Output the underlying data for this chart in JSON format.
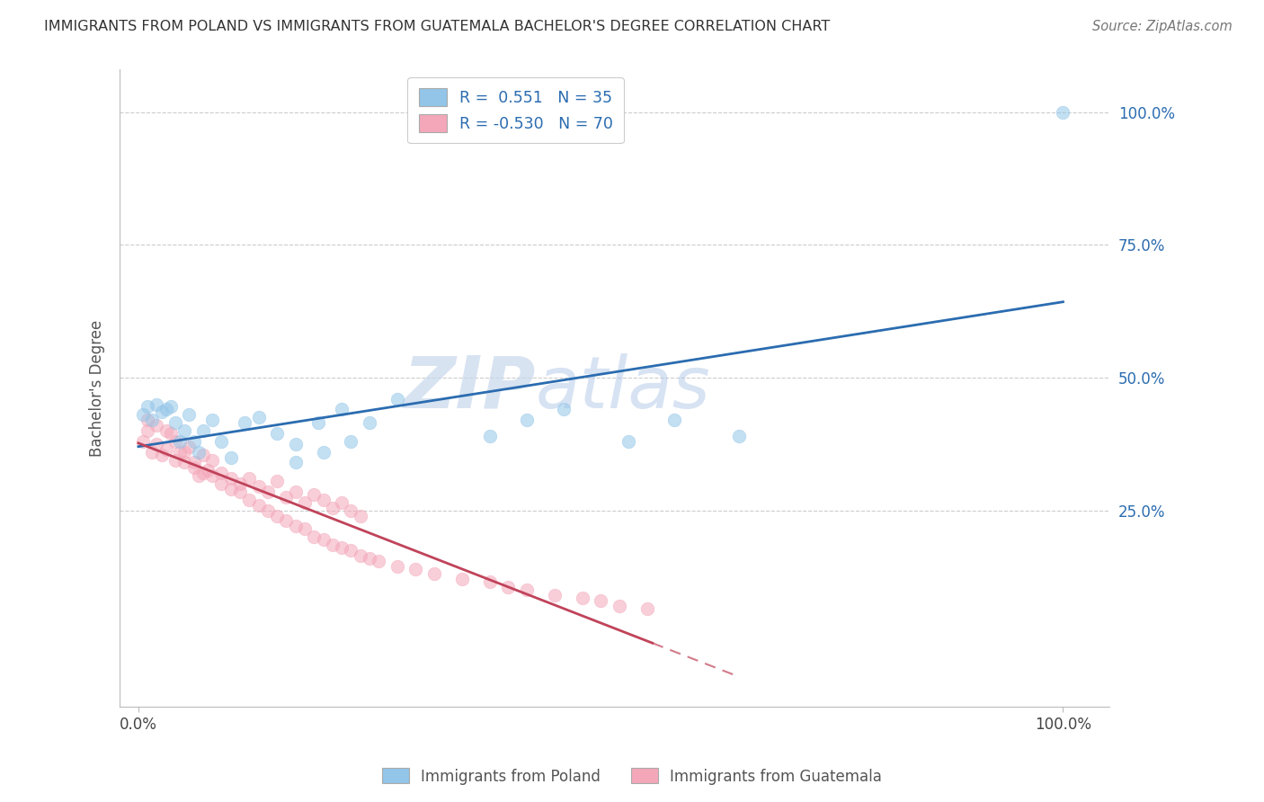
{
  "title": "IMMIGRANTS FROM POLAND VS IMMIGRANTS FROM GUATEMALA BACHELOR'S DEGREE CORRELATION CHART",
  "source": "Source: ZipAtlas.com",
  "ylabel": "Bachelor's Degree",
  "legend_labels": [
    "Immigrants from Poland",
    "Immigrants from Guatemala"
  ],
  "r_poland": 0.551,
  "n_poland": 35,
  "r_guatemala": -0.53,
  "n_guatemala": 70,
  "blue_color": "#92c5e8",
  "pink_color": "#f4a7b9",
  "blue_line_color": "#2b6cb0",
  "pink_line_color": "#c0435a",
  "legend_text_color": "#2b6cb0",
  "right_axis_color": "#2b6cb0",
  "watermark_color": "#d0dff0",
  "background_color": "#ffffff",
  "xlim": [
    -0.02,
    1.05
  ],
  "ylim": [
    -0.12,
    1.08
  ],
  "poland_x": [
    0.005,
    0.01,
    0.015,
    0.02,
    0.025,
    0.03,
    0.035,
    0.04,
    0.045,
    0.05,
    0.055,
    0.06,
    0.065,
    0.07,
    0.08,
    0.09,
    0.1,
    0.115,
    0.13,
    0.15,
    0.17,
    0.195,
    0.22,
    0.25,
    0.28,
    0.17,
    0.2,
    0.23,
    0.38,
    0.42,
    0.46,
    0.53,
    0.58,
    0.65,
    1.0
  ],
  "poland_y": [
    0.43,
    0.445,
    0.42,
    0.45,
    0.435,
    0.44,
    0.445,
    0.415,
    0.38,
    0.4,
    0.43,
    0.38,
    0.36,
    0.4,
    0.42,
    0.38,
    0.35,
    0.415,
    0.425,
    0.395,
    0.375,
    0.415,
    0.44,
    0.415,
    0.46,
    0.34,
    0.36,
    0.38,
    0.39,
    0.42,
    0.44,
    0.38,
    0.42,
    0.39,
    1.0
  ],
  "guatemala_x": [
    0.005,
    0.01,
    0.015,
    0.02,
    0.025,
    0.03,
    0.035,
    0.04,
    0.045,
    0.05,
    0.055,
    0.06,
    0.065,
    0.07,
    0.075,
    0.08,
    0.09,
    0.1,
    0.11,
    0.12,
    0.13,
    0.14,
    0.15,
    0.16,
    0.17,
    0.18,
    0.19,
    0.2,
    0.21,
    0.22,
    0.23,
    0.24,
    0.01,
    0.02,
    0.03,
    0.04,
    0.05,
    0.06,
    0.07,
    0.08,
    0.09,
    0.1,
    0.11,
    0.12,
    0.13,
    0.14,
    0.15,
    0.16,
    0.17,
    0.18,
    0.19,
    0.2,
    0.21,
    0.22,
    0.23,
    0.24,
    0.25,
    0.26,
    0.28,
    0.3,
    0.32,
    0.35,
    0.38,
    0.4,
    0.42,
    0.45,
    0.48,
    0.5,
    0.52,
    0.55
  ],
  "guatemala_y": [
    0.38,
    0.4,
    0.36,
    0.375,
    0.355,
    0.365,
    0.395,
    0.345,
    0.36,
    0.34,
    0.37,
    0.33,
    0.315,
    0.355,
    0.325,
    0.345,
    0.32,
    0.31,
    0.3,
    0.31,
    0.295,
    0.285,
    0.305,
    0.275,
    0.285,
    0.265,
    0.28,
    0.27,
    0.255,
    0.265,
    0.25,
    0.24,
    0.42,
    0.41,
    0.4,
    0.38,
    0.36,
    0.34,
    0.32,
    0.315,
    0.3,
    0.29,
    0.285,
    0.27,
    0.26,
    0.25,
    0.24,
    0.23,
    0.22,
    0.215,
    0.2,
    0.195,
    0.185,
    0.18,
    0.175,
    0.165,
    0.16,
    0.155,
    0.145,
    0.14,
    0.13,
    0.12,
    0.115,
    0.105,
    0.1,
    0.09,
    0.085,
    0.08,
    0.07,
    0.065
  ]
}
